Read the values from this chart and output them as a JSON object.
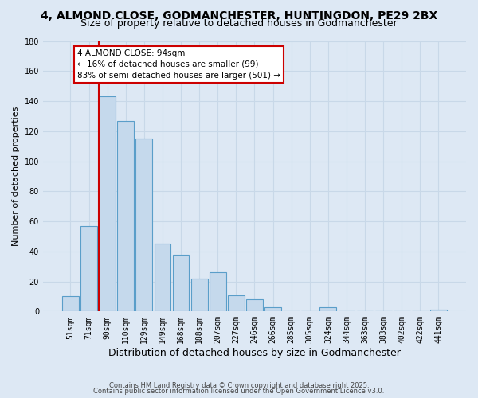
{
  "title": "4, ALMOND CLOSE, GODMANCHESTER, HUNTINGDON, PE29 2BX",
  "subtitle": "Size of property relative to detached houses in Godmanchester",
  "xlabel": "Distribution of detached houses by size in Godmanchester",
  "ylabel": "Number of detached properties",
  "bin_labels": [
    "51sqm",
    "71sqm",
    "90sqm",
    "110sqm",
    "129sqm",
    "149sqm",
    "168sqm",
    "188sqm",
    "207sqm",
    "227sqm",
    "246sqm",
    "266sqm",
    "285sqm",
    "305sqm",
    "324sqm",
    "344sqm",
    "363sqm",
    "383sqm",
    "402sqm",
    "422sqm",
    "441sqm"
  ],
  "bar_heights": [
    10,
    57,
    143,
    127,
    115,
    45,
    38,
    22,
    26,
    11,
    8,
    3,
    0,
    0,
    3,
    0,
    0,
    0,
    0,
    0,
    1
  ],
  "bar_color": "#c5d9ec",
  "bar_edge_color": "#5a9ec9",
  "vline_x_idx": 2,
  "vline_color": "#cc0000",
  "ylim": [
    0,
    180
  ],
  "yticks": [
    0,
    20,
    40,
    60,
    80,
    100,
    120,
    140,
    160,
    180
  ],
  "annotation_title": "4 ALMOND CLOSE: 94sqm",
  "annotation_line1": "← 16% of detached houses are smaller (99)",
  "annotation_line2": "83% of semi-detached houses are larger (501) →",
  "annotation_box_color": "#ffffff",
  "annotation_box_edge": "#cc0000",
  "footer1": "Contains HM Land Registry data © Crown copyright and database right 2025.",
  "footer2": "Contains public sector information licensed under the Open Government Licence v3.0.",
  "background_color": "#dde8f4",
  "grid_color": "#c8d8e8",
  "title_fontsize": 10,
  "subtitle_fontsize": 9,
  "ylabel_fontsize": 8,
  "xlabel_fontsize": 9,
  "tick_fontsize": 7,
  "footer_fontsize": 6
}
